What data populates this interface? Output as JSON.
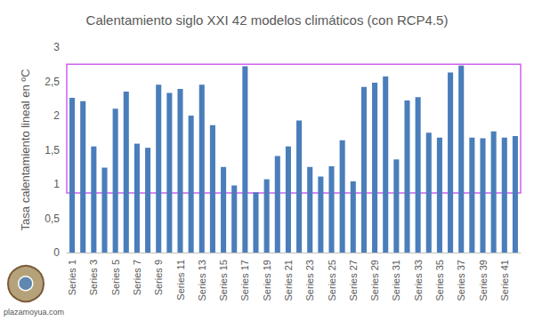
{
  "chart_data": {
    "type": "bar",
    "title": "Calentamiento siglo XXI 42 modelos climáticos (con RCP4.5)",
    "y_label": "Tasa calentamiento lineal en ºC",
    "watermark": "plazamoyua.com",
    "categories": [
      "Series 1",
      null,
      "Series 3",
      null,
      "Series 5",
      null,
      "Series 7",
      null,
      "Series 9",
      null,
      "Series 11",
      null,
      "Series 13",
      null,
      "Series 15",
      null,
      "Series 17",
      null,
      "Series 19",
      null,
      "Series 21",
      null,
      "Series 23",
      null,
      "Series 25",
      null,
      "Series 27",
      null,
      "Series 29",
      null,
      "Series 31",
      null,
      "Series 33",
      null,
      "Series 35",
      null,
      "Series 37",
      null,
      "Series 39",
      null,
      "Series 41",
      null
    ],
    "values": [
      2.26,
      2.21,
      1.55,
      1.24,
      2.1,
      2.35,
      1.59,
      1.53,
      2.45,
      2.33,
      2.39,
      2.0,
      2.45,
      1.86,
      1.25,
      0.98,
      2.72,
      0.88,
      1.07,
      1.41,
      1.55,
      1.93,
      1.25,
      1.11,
      1.26,
      1.64,
      1.04,
      2.42,
      2.48,
      2.57,
      1.36,
      2.22,
      2.27,
      1.75,
      1.68,
      2.63,
      2.73,
      1.68,
      1.67,
      1.77,
      1.68,
      1.7
    ],
    "color": "#4a7ebb",
    "range_box": [
      0.87,
      2.75
    ],
    "ylim": [
      0,
      3
    ],
    "yticks": [
      0,
      {
        "value": 0.5,
        "label": "0,5"
      },
      1,
      {
        "value": 1.5,
        "label": "1,5"
      },
      2,
      {
        "value": 2.5,
        "label": "2,5"
      },
      3
    ],
    "grid": false
  }
}
